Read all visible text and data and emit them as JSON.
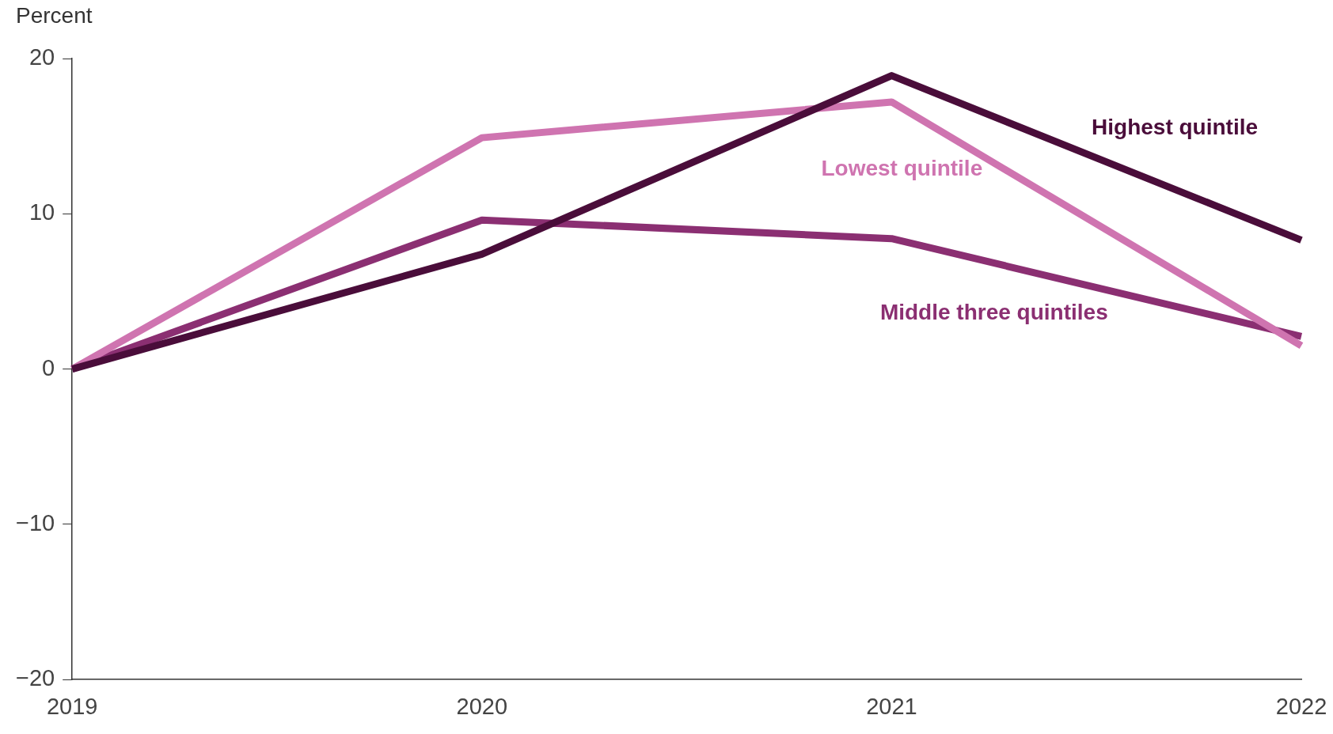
{
  "chart_data": {
    "type": "line",
    "ylabel": "Percent",
    "categories": [
      "2019",
      "2020",
      "2021",
      "2022"
    ],
    "series": [
      {
        "name": "Highest quintile",
        "color": "#4a0d3a",
        "values": [
          0,
          7.4,
          18.9,
          8.3
        ]
      },
      {
        "name": "Lowest quintile",
        "color": "#cf74b0",
        "values": [
          0,
          14.9,
          17.2,
          1.5
        ]
      },
      {
        "name": "Middle three quintiles",
        "color": "#8b2f72",
        "values": [
          0,
          9.6,
          8.4,
          2.1
        ]
      }
    ],
    "ylim": [
      -20,
      20
    ],
    "yticks": [
      -20,
      -10,
      0,
      10,
      20
    ],
    "grid": false,
    "legend": false,
    "marker": "none",
    "line_style": "solid"
  }
}
